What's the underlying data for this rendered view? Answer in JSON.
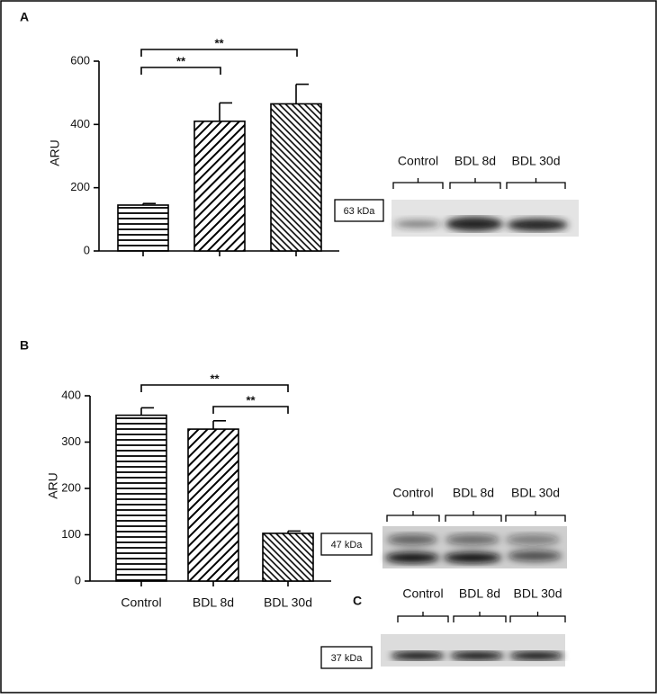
{
  "chart_data": [
    {
      "type": "bar",
      "panel_label": "A",
      "y_label": "ARU",
      "categories": [
        null,
        null,
        null
      ],
      "values": [
        145,
        410,
        465
      ],
      "errors": [
        5,
        58,
        62
      ],
      "ylim": [
        0,
        600
      ],
      "yticks": [
        0,
        200,
        400,
        600
      ],
      "color": "#000000",
      "annotations": [
        "**",
        "**"
      ]
    },
    {
      "type": "bar",
      "panel_label": "B",
      "y_label": "ARU",
      "categories": [
        "Control",
        "BDL 8d",
        "BDL 30d"
      ],
      "values": [
        358,
        328,
        103
      ],
      "errors": [
        16,
        18,
        5
      ],
      "ylim": [
        0,
        400
      ],
      "yticks": [
        0,
        100,
        200,
        300,
        400
      ],
      "color": "#000000",
      "annotations": [
        "**",
        "**"
      ]
    }
  ],
  "blots": [
    {
      "marker": "63 kDa",
      "lanes": [
        "Control",
        "BDL 8d",
        "BDL 30d"
      ]
    },
    {
      "marker": "47 kDa",
      "lanes": [
        "Control",
        "BDL 8d",
        "BDL 30d"
      ]
    },
    {
      "panel_label": "C",
      "marker": "37 kDa",
      "lanes": [
        "Control",
        "BDL 8d",
        "BDL 30d"
      ]
    }
  ]
}
